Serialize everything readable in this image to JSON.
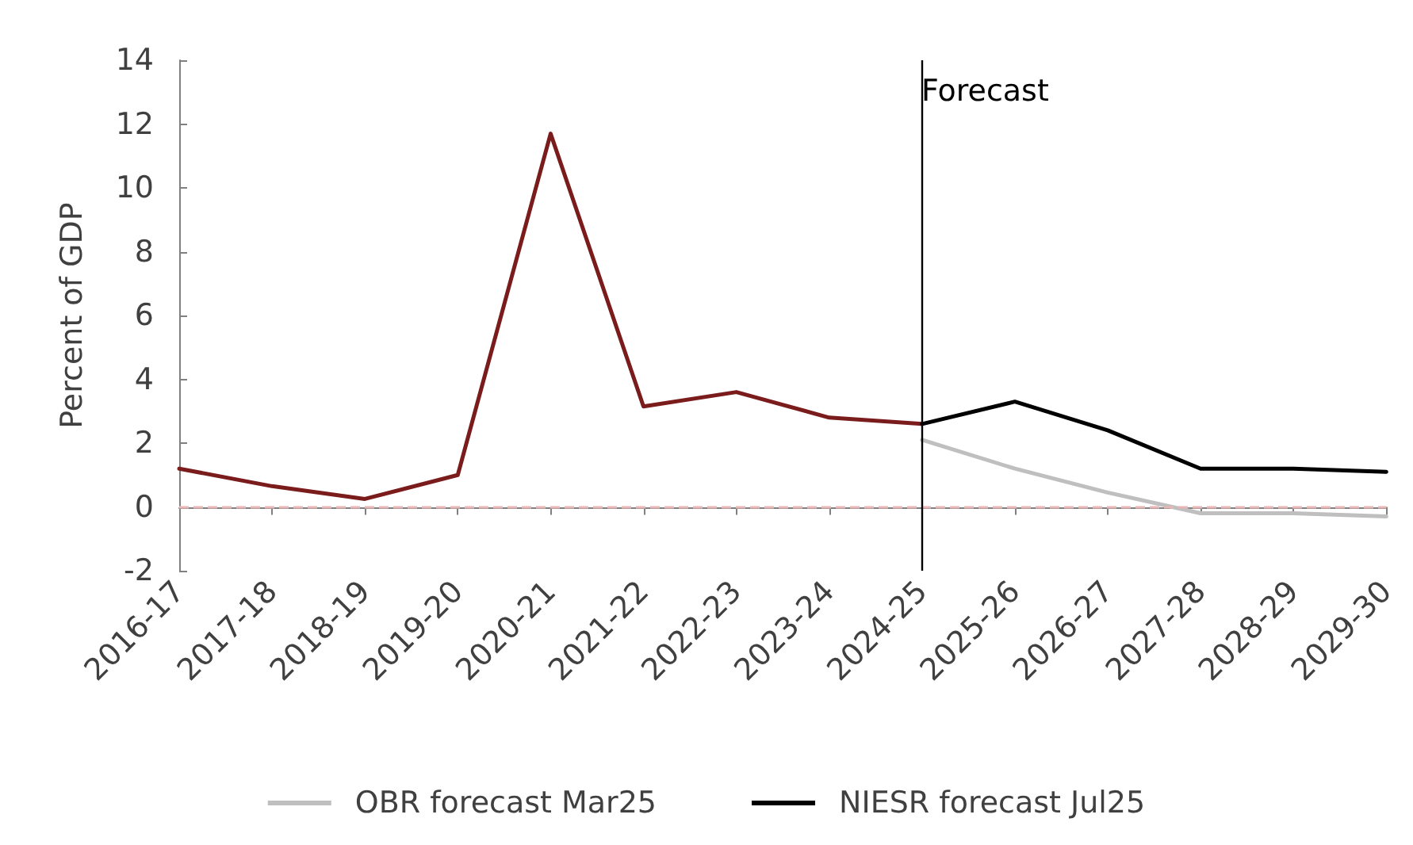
{
  "chart_data": {
    "type": "line",
    "ylabel": "Percent of GDP",
    "categories": [
      "2016-17",
      "2017-18",
      "2018-19",
      "2019-20",
      "2020-21",
      "2021-22",
      "2022-23",
      "2023-24",
      "2024-25",
      "2025-26",
      "2026-27",
      "2027-28",
      "2028-29",
      "2029-30"
    ],
    "series": [
      {
        "color": "#7b1c1c",
        "values": [
          1.2,
          0.65,
          0.25,
          1.0,
          11.7,
          3.15,
          3.6,
          2.8,
          2.6,
          null,
          null,
          null,
          null,
          null
        ]
      },
      {
        "name": "OBR forecast Mar25",
        "color": "#bfbfbf",
        "values": [
          null,
          null,
          null,
          null,
          null,
          null,
          null,
          null,
          2.1,
          1.2,
          0.45,
          -0.2,
          -0.2,
          -0.3
        ]
      },
      {
        "name": "NIESR forecast Jul25",
        "color": "#000000",
        "values": [
          null,
          null,
          null,
          null,
          null,
          null,
          null,
          null,
          2.6,
          3.3,
          2.4,
          1.2,
          1.2,
          1.1
        ]
      }
    ],
    "ylim": [
      -2,
      14
    ],
    "yticks": [
      -2,
      0,
      2,
      4,
      6,
      8,
      10,
      12,
      14
    ],
    "grid": false,
    "legend": "bottom",
    "marker": "none",
    "line_style": "solid",
    "ref_lines": [
      {
        "axis": "y",
        "value": 0,
        "color": "#e8b4b4",
        "line_style": "dashed"
      },
      {
        "axis": "x",
        "value": "2024-25",
        "label": "Forecast",
        "color": "#000000",
        "line_style": "solid"
      }
    ]
  }
}
